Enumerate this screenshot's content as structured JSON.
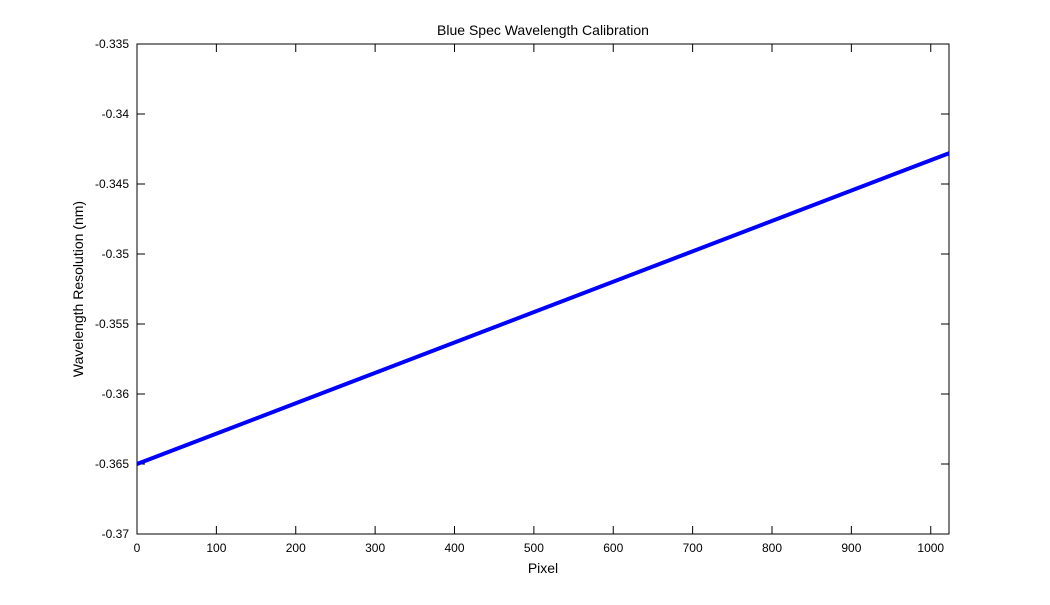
{
  "chart_data": {
    "type": "line",
    "title": "Blue Spec Wavelength Calibration",
    "x_label": "Pixel",
    "y_label": "Wavelength Resolution (nm)",
    "x": [
      0,
      1023
    ],
    "series": [
      {
        "color": "#0000ff",
        "values": [
          -0.365,
          -0.3428
        ]
      }
    ],
    "xlim": [
      0,
      1023
    ],
    "xticks": [
      0,
      100,
      200,
      300,
      400,
      500,
      600,
      700,
      800,
      900,
      1000
    ],
    "ylim": [
      -0.37,
      -0.335
    ],
    "yticks": [
      -0.37,
      -0.365,
      -0.36,
      -0.355,
      -0.35,
      -0.345,
      -0.34,
      -0.335
    ],
    "grid": false
  }
}
